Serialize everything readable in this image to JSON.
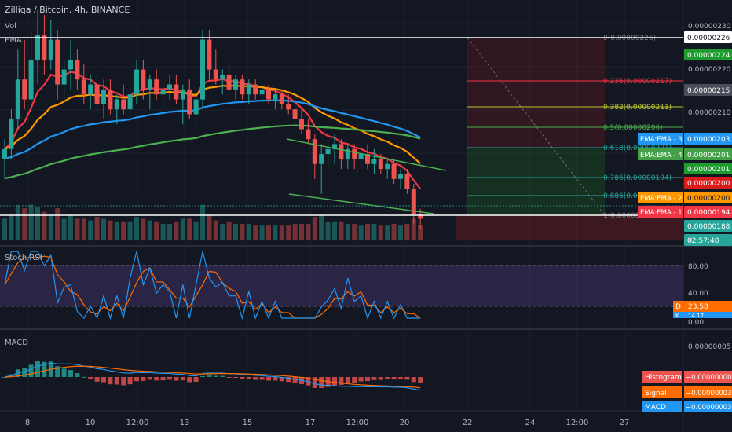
{
  "header": {
    "title": "Zilliqa / Bitcoin, 4h, BINANCE",
    "vol_label": "Vol",
    "ema_label": "EMA"
  },
  "colors": {
    "background": "#131722",
    "up": "#26a69a",
    "down": "#ef5350",
    "ema1": "#f23645",
    "ema2": "#ff9800",
    "ema3": "#2196f3",
    "ema4": "#4caf50",
    "stoch_k": "#2196f3",
    "stoch_d": "#ff6d00",
    "stoch_band": "#7e57c2",
    "macd": "#2196f3",
    "signal": "#ff6d00"
  },
  "x_axis": {
    "labels": [
      "8",
      "10",
      "12:00",
      "13",
      "15",
      "17",
      "12:00",
      "20",
      "22",
      "24",
      "12:00",
      "27"
    ]
  },
  "price_axis": {
    "labels": [
      "0.00000230",
      "0.00000220",
      "0.00000210",
      "0.00000188"
    ],
    "badges": [
      {
        "text": "0.00000226",
        "bg": "#ffffff",
        "fg": "#131722"
      },
      {
        "text": "0.00000224",
        "bg": "#1e9b2e",
        "fg": "#ffffff"
      },
      {
        "text": "0.00000215",
        "bg": "#4a4e5a",
        "fg": "#ffffff"
      },
      {
        "text": "0.00000203",
        "bg": "#2196f3",
        "fg": "#ffffff"
      },
      {
        "text": "0.00000201",
        "bg": "#43a047",
        "fg": "#ffffff"
      },
      {
        "text": "0.00000201",
        "bg": "#1e9b2e",
        "fg": "#ffffff"
      },
      {
        "text": "0.00000200",
        "bg": "#d81b1b",
        "fg": "#ffffff"
      },
      {
        "text": "0.00000200",
        "bg": "#ff9800",
        "fg": "#131722"
      },
      {
        "text": "0.00000194",
        "bg": "#f23645",
        "fg": "#ffffff"
      },
      {
        "text": "0.00000188",
        "bg": "#26a69a",
        "fg": "#ffffff"
      },
      {
        "text": "02:57:48",
        "bg": "#26a69a",
        "fg": "#ffffff"
      }
    ],
    "ema_tags": [
      {
        "text": "EMA:EMA - 3",
        "bg": "#2196f3"
      },
      {
        "text": "EMA:EMA - 4",
        "bg": "#43a047"
      },
      {
        "text": "EMA:EMA - 2",
        "bg": "#ff9800"
      },
      {
        "text": "EMA:EMA - 1",
        "bg": "#f23645"
      }
    ],
    "zero_label": "0"
  },
  "fib": {
    "levels": [
      {
        "label": "0(0.00000226)",
        "color": "#787b86"
      },
      {
        "label": "0.236(0.00000217)",
        "color": "#f23645"
      },
      {
        "label": "0.382(0.00000211)",
        "color": "#c0ca33"
      },
      {
        "label": "0.5(0.00000206)",
        "color": "#4caf50"
      },
      {
        "label": "0.618(0.00000201)",
        "color": "#26a69a"
      },
      {
        "label": "0.786(0.00000194)",
        "color": "#26a69a"
      },
      {
        "label": "0.886(0.00000190)",
        "color": "#26a69a"
      },
      {
        "label": "1(0.00000185)",
        "color": "#787b86"
      }
    ]
  },
  "stoch": {
    "label": "Stoch RSI",
    "axis_labels": [
      "80.00",
      "40.00",
      "0.00"
    ],
    "d_tag": "D",
    "d_value": "23.58",
    "k_tag": "K",
    "k_value": "14.17"
  },
  "macd_panel": {
    "label": "MACD",
    "axis_label": "0.00000005",
    "tags": [
      {
        "name": "Histogram",
        "value": "−0.00000000",
        "bg": "#ef5350"
      },
      {
        "name": "Signal",
        "value": "−0.00000003",
        "bg": "#ff6d00"
      },
      {
        "name": "MACD",
        "value": "−0.00000003",
        "bg": "#2196f3"
      }
    ]
  },
  "chart_data": {
    "type": "candlestick",
    "title": "Zilliqa / Bitcoin, 4h, BINANCE",
    "ylim": [
      1.83e-06,
      2.32e-06
    ],
    "candles": [
      [
        2.0,
        2.04,
        1.96,
        2.02
      ],
      [
        2.02,
        2.1,
        2.0,
        2.08
      ],
      [
        2.08,
        2.22,
        2.06,
        2.16
      ],
      [
        2.16,
        2.24,
        2.1,
        2.12
      ],
      [
        2.12,
        2.26,
        2.1,
        2.2
      ],
      [
        2.2,
        2.3,
        2.15,
        2.25
      ],
      [
        2.25,
        2.29,
        2.17,
        2.2
      ],
      [
        2.2,
        2.28,
        2.18,
        2.24
      ],
      [
        2.24,
        2.26,
        2.12,
        2.15
      ],
      [
        2.15,
        2.2,
        2.12,
        2.18
      ],
      [
        2.18,
        2.24,
        2.14,
        2.2
      ],
      [
        2.2,
        2.22,
        2.14,
        2.16
      ],
      [
        2.16,
        2.19,
        2.11,
        2.13
      ],
      [
        2.13,
        2.17,
        2.1,
        2.15
      ],
      [
        2.15,
        2.18,
        2.09,
        2.11
      ],
      [
        2.11,
        2.16,
        2.08,
        2.14
      ],
      [
        2.14,
        2.16,
        2.09,
        2.1
      ],
      [
        2.1,
        2.13,
        2.07,
        2.12
      ],
      [
        2.12,
        2.15,
        2.09,
        2.1
      ],
      [
        2.1,
        2.14,
        2.08,
        2.13
      ],
      [
        2.13,
        2.2,
        2.11,
        2.18
      ],
      [
        2.18,
        2.2,
        2.12,
        2.14
      ],
      [
        2.14,
        2.17,
        2.1,
        2.16
      ],
      [
        2.16,
        2.18,
        2.12,
        2.13
      ],
      [
        2.13,
        2.15,
        2.1,
        2.14
      ],
      [
        2.14,
        2.17,
        2.12,
        2.15
      ],
      [
        2.15,
        2.17,
        2.11,
        2.12
      ],
      [
        2.12,
        2.15,
        2.07,
        2.14
      ],
      [
        2.14,
        2.16,
        2.08,
        2.09
      ],
      [
        2.09,
        2.13,
        2.07,
        2.12
      ],
      [
        2.12,
        2.26,
        2.1,
        2.24
      ],
      [
        2.24,
        2.26,
        2.16,
        2.18
      ],
      [
        2.18,
        2.22,
        2.15,
        2.16
      ],
      [
        2.16,
        2.18,
        2.13,
        2.17
      ],
      [
        2.17,
        2.19,
        2.13,
        2.14
      ],
      [
        2.14,
        2.17,
        2.12,
        2.16
      ],
      [
        2.16,
        2.17,
        2.12,
        2.13
      ],
      [
        2.13,
        2.16,
        2.11,
        2.15
      ],
      [
        2.15,
        2.16,
        2.12,
        2.13
      ],
      [
        2.13,
        2.15,
        2.11,
        2.14
      ],
      [
        2.14,
        2.15,
        2.11,
        2.12
      ],
      [
        2.12,
        2.14,
        2.1,
        2.13
      ],
      [
        2.13,
        2.14,
        2.1,
        2.11
      ],
      [
        2.11,
        2.13,
        2.09,
        2.1
      ],
      [
        2.1,
        2.12,
        2.07,
        2.08
      ],
      [
        2.08,
        2.1,
        2.05,
        2.06
      ],
      [
        2.06,
        2.08,
        2.03,
        2.04
      ],
      [
        2.04,
        2.05,
        1.96,
        1.99
      ],
      [
        1.99,
        2.03,
        1.93,
        2.01
      ],
      [
        2.01,
        2.04,
        1.98,
        2.02
      ],
      [
        2.02,
        2.05,
        1.99,
        2.03
      ],
      [
        2.03,
        2.04,
        1.98,
        2.0
      ],
      [
        2.0,
        2.03,
        1.98,
        2.02
      ],
      [
        2.02,
        2.03,
        1.98,
        2.0
      ],
      [
        2.0,
        2.02,
        1.98,
        2.01
      ],
      [
        2.01,
        2.03,
        1.98,
        1.99
      ],
      [
        1.99,
        2.02,
        1.97,
        2.0
      ],
      [
        2.0,
        2.01,
        1.97,
        1.98
      ],
      [
        1.98,
        2.0,
        1.96,
        1.99
      ],
      [
        1.99,
        2.0,
        1.95,
        1.96
      ],
      [
        1.96,
        1.98,
        1.94,
        1.97
      ],
      [
        1.97,
        1.98,
        1.93,
        1.94
      ],
      [
        1.94,
        1.95,
        1.87,
        1.89
      ],
      [
        1.89,
        1.9,
        1.86,
        1.88
      ]
    ],
    "ema_series": [
      {
        "name": "EMA:EMA - 1",
        "color": "#f23645"
      },
      {
        "name": "EMA:EMA - 2",
        "color": "#ff9800"
      },
      {
        "name": "EMA:EMA - 3",
        "color": "#2196f3"
      },
      {
        "name": "EMA:EMA - 4",
        "color": "#4caf50"
      }
    ]
  }
}
